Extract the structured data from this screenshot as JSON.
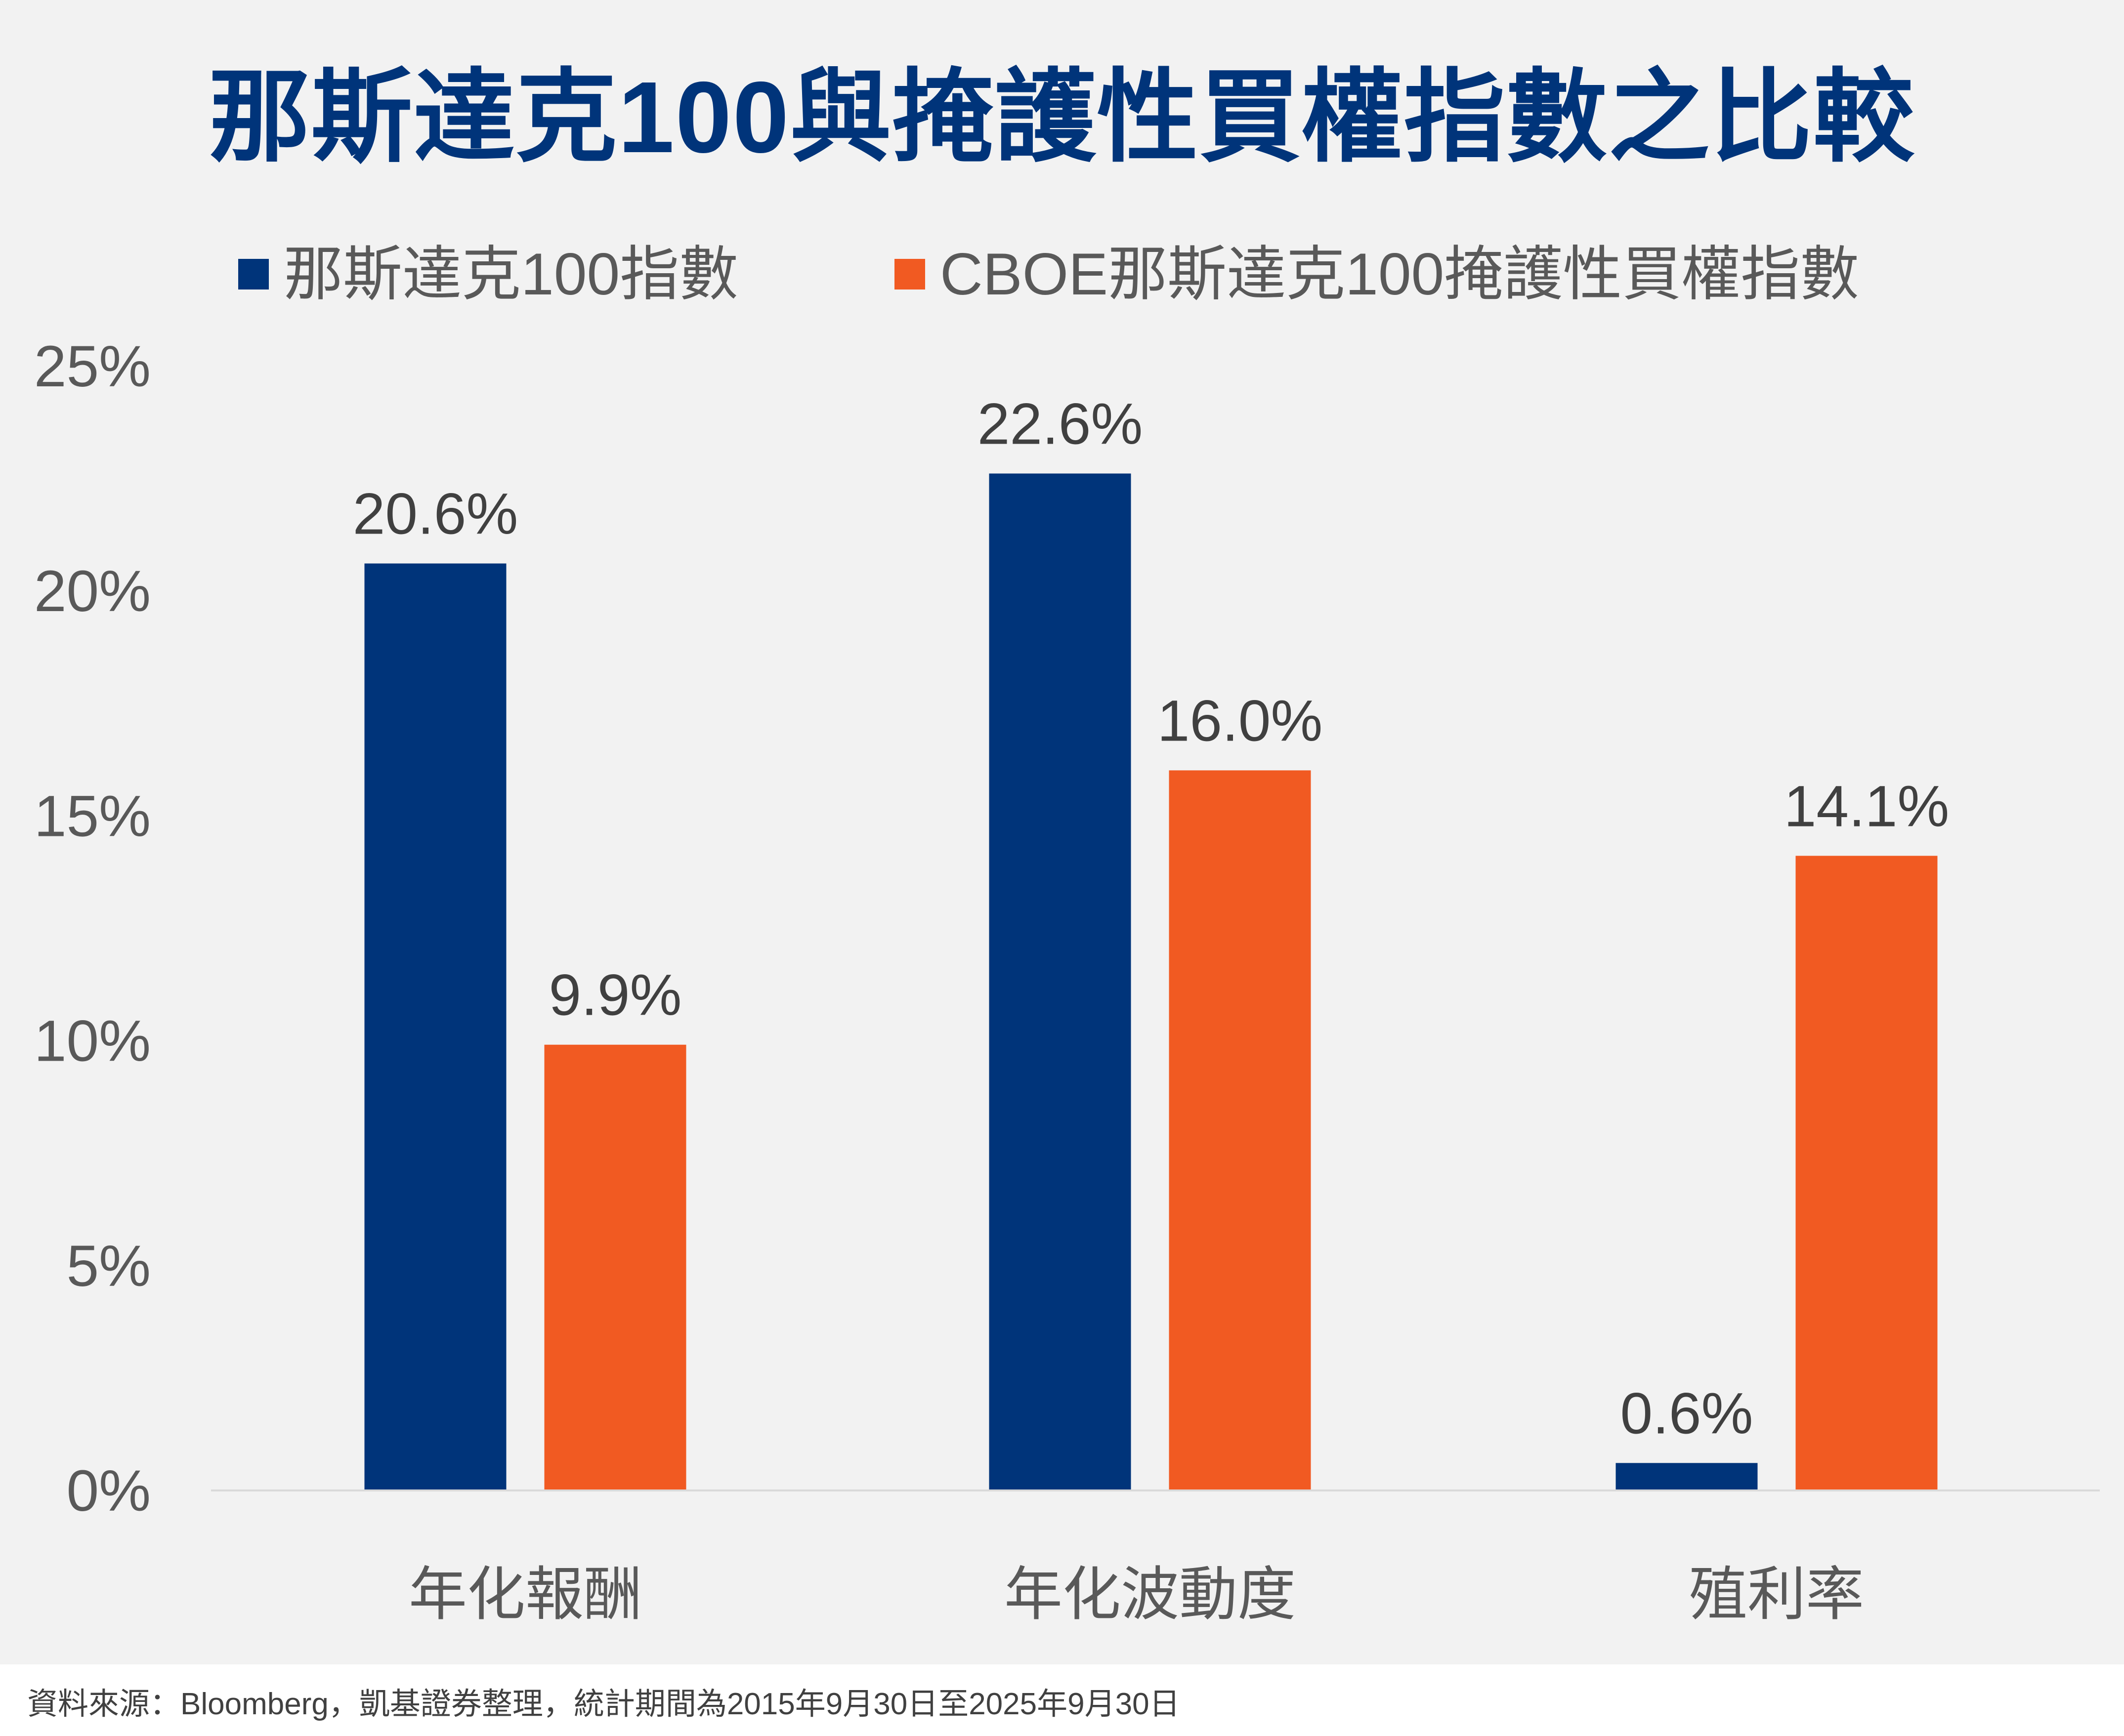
{
  "title": "那斯達克100與掩護性買權指數之比較",
  "footer": "資料來源：Bloomberg，凱基證券整理，統計期間為2015年9月30日至2025年9月30日",
  "colors": {
    "series1": "#00347a",
    "series2": "#f15a22",
    "axis": "#d9d9d9",
    "background": "#f2f2f2"
  },
  "chart_data": {
    "type": "bar",
    "title": "那斯達克100與掩護性買權指數之比較",
    "categories": [
      "年化報酬",
      "年化波動度",
      "殖利率"
    ],
    "series": [
      {
        "name": "那斯達克100指數",
        "values": [
          20.6,
          22.6,
          0.6
        ],
        "labels": [
          "20.6%",
          "22.6%",
          "0.6%"
        ]
      },
      {
        "name": "CBOE那斯達克100掩護性買權指數",
        "values": [
          9.9,
          16.0,
          14.1
        ],
        "labels": [
          "9.9%",
          "16.0%",
          "14.1%"
        ]
      }
    ],
    "yticks": [
      0,
      5,
      10,
      15,
      20,
      25
    ],
    "ytick_labels": [
      "0%",
      "5%",
      "10%",
      "15%",
      "20%",
      "25%"
    ],
    "ylim": [
      0,
      25
    ],
    "xlabel": "",
    "ylabel": "",
    "grid": false,
    "legend_position": "top"
  }
}
